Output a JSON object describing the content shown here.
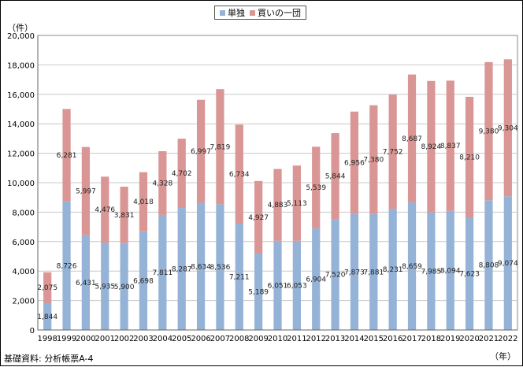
{
  "figure": {
    "y_unit": "（件）",
    "x_unit": "（年）",
    "source": "基礎資料: 分析帳票A-4"
  },
  "colors": {
    "single": "#95b3d7",
    "group": "#d99694"
  },
  "chart_data": {
    "type": "bar",
    "stacked": true,
    "title": "",
    "xlabel": "",
    "ylabel": "",
    "ylim": [
      0,
      20000
    ],
    "yticks": [
      0,
      2000,
      4000,
      6000,
      8000,
      10000,
      12000,
      14000,
      16000,
      18000,
      20000
    ],
    "ytick_labels": [
      "0",
      "2,000",
      "4,000",
      "6,000",
      "8,000",
      "10,000",
      "12,000",
      "14,000",
      "16,000",
      "18,000",
      "20,000"
    ],
    "grid": true,
    "legend_position": "top-center",
    "categories": [
      "1998",
      "1999",
      "2000",
      "2001",
      "2002",
      "2003",
      "2004",
      "2005",
      "2006",
      "2007",
      "2008",
      "2009",
      "2010",
      "2011",
      "2012",
      "2013",
      "2014",
      "2015",
      "2016",
      "2017",
      "2018",
      "2019",
      "2020",
      "2021",
      "2022"
    ],
    "series": [
      {
        "name": "単独",
        "values": [
          1844,
          8726,
          6431,
          5935,
          5900,
          6698,
          7811,
          8287,
          8634,
          8536,
          7211,
          5189,
          6051,
          6053,
          6904,
          7520,
          7873,
          7881,
          8231,
          8659,
          7985,
          8094,
          7623,
          8808,
          9074
        ],
        "labels": [
          "1,844",
          "8,726",
          "6,431",
          "5,935",
          "5,900",
          "6,698",
          "7,811",
          "8,287",
          "8,634",
          "8,536",
          "7,211",
          "5,189",
          "6,051",
          "6,053",
          "6,904",
          "7,520",
          "7,873",
          "7,881",
          "8,231",
          "8,659",
          "7,985",
          "8,094",
          "7,623",
          "8,808",
          "9,074"
        ]
      },
      {
        "name": "買いの一団",
        "values": [
          2075,
          6281,
          5997,
          4476,
          3831,
          4018,
          4328,
          4702,
          6997,
          7819,
          6734,
          4927,
          4883,
          5113,
          5539,
          5844,
          6956,
          7380,
          7752,
          8687,
          8924,
          8837,
          8210,
          9380,
          9304
        ],
        "labels": [
          "2,075",
          "6,281",
          "5,997",
          "4,476",
          "3,831",
          "4,018",
          "4,328",
          "4,702",
          "6,997",
          "7,819",
          "6,734",
          "4,927",
          "4,883",
          "5,113",
          "5,539",
          "5,844",
          "6,956",
          "7,380",
          "7,752",
          "8,687",
          "8,924",
          "8,837",
          "8,210",
          "9,380",
          "9,304"
        ]
      }
    ]
  }
}
